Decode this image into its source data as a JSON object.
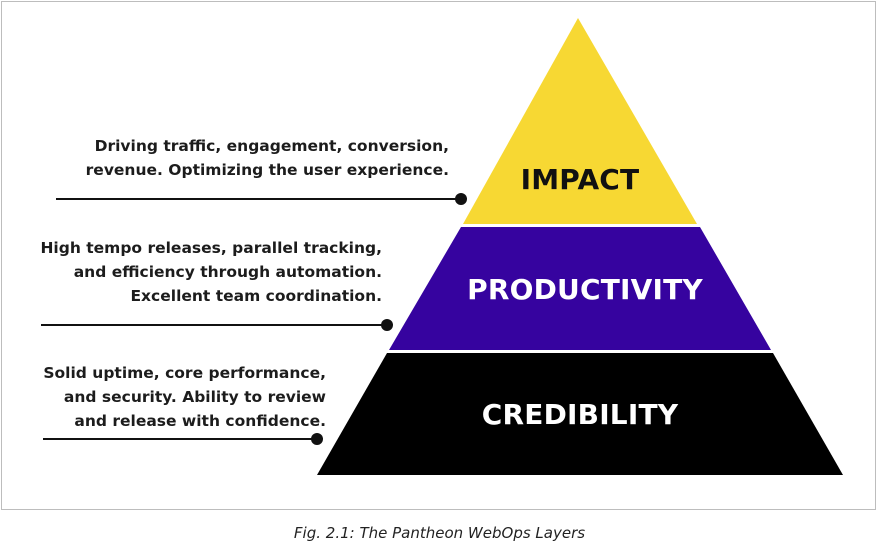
{
  "colors": {
    "impact": "#f7d833",
    "productivity": "#36039f",
    "credibility": "#000000",
    "impact_text": "#111111",
    "productivity_text": "#ffffff",
    "credibility_text": "#ffffff",
    "connector": "#111111"
  },
  "layers": {
    "impact": {
      "label": "IMPACT",
      "description": [
        "Driving traffic, engagement, conversion,",
        "revenue. Optimizing the user experience."
      ]
    },
    "productivity": {
      "label": "PRODUCTIVITY",
      "description": [
        "High tempo releases, parallel tracking,",
        "and efficiency through automation.",
        "Excellent team coordination."
      ]
    },
    "credibility": {
      "label": "CREDIBILITY",
      "description": [
        "Solid uptime, core performance,",
        "and security. Ability to review",
        "and release with confidence."
      ]
    }
  },
  "caption": "Fig. 2.1: The Pantheon WebOps Layers"
}
